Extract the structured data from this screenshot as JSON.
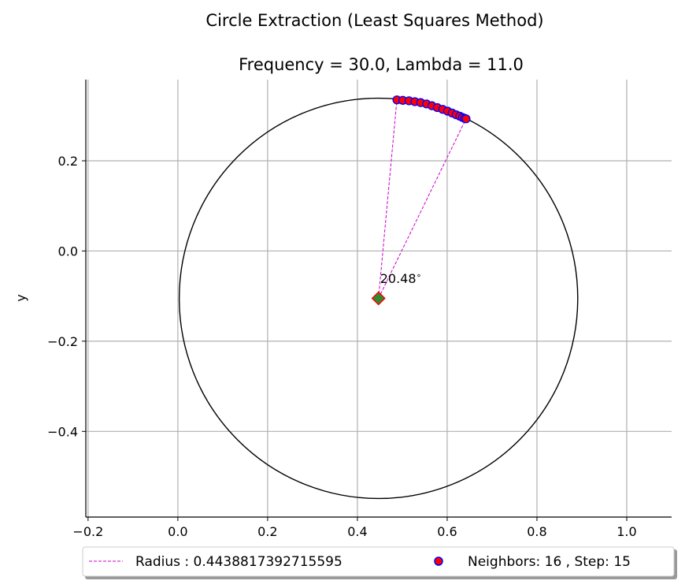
{
  "chart_data": {
    "type": "scatter",
    "suptitle": "Circle Extraction (Least Squares Method)",
    "title": "Frequency = 30.0, Lambda = 11.0",
    "xlabel": "",
    "ylabel": "y",
    "xlim": [
      -0.205,
      1.1
    ],
    "ylim": [
      -0.59,
      0.38
    ],
    "xticks": [
      -0.2,
      0.0,
      0.2,
      0.4,
      0.6,
      0.8,
      1.0
    ],
    "xtick_labels": [
      "−0.2",
      "0.0",
      "0.2",
      "0.4",
      "0.6",
      "0.8",
      "1.0"
    ],
    "yticks": [
      -0.4,
      -0.2,
      0.0,
      0.2
    ],
    "ytick_labels": [
      "−0.4",
      "−0.2",
      "0.0",
      "0.2"
    ],
    "grid": true,
    "circle": {
      "center": [
        0.447,
        -0.105
      ],
      "radius": 0.4438817392715595
    },
    "center_marker": {
      "x": 0.447,
      "y": -0.105
    },
    "points": {
      "x": [
        0.488,
        0.501,
        0.515,
        0.528,
        0.541,
        0.554,
        0.566,
        0.578,
        0.59,
        0.601,
        0.611,
        0.62,
        0.628,
        0.634,
        0.639,
        0.642
      ],
      "y": [
        0.335,
        0.334,
        0.333,
        0.331,
        0.329,
        0.326,
        0.322,
        0.318,
        0.314,
        0.31,
        0.306,
        0.302,
        0.299,
        0.296,
        0.294,
        0.293
      ]
    },
    "radius_lines": [
      {
        "from": [
          0.447,
          -0.105
        ],
        "to": [
          0.488,
          0.335
        ]
      },
      {
        "from": [
          0.447,
          -0.105
        ],
        "to": [
          0.642,
          0.293
        ]
      }
    ],
    "angle_annotation": {
      "text": "20.48",
      "degree_symbol": "∘",
      "x": 0.447,
      "y": -0.06
    },
    "legend": {
      "location": "lower center, outside plot",
      "entries": [
        {
          "label": "Radius : 0.4438817392715595",
          "style": "dashed-line",
          "color": "#cc00cc"
        },
        {
          "label": "Neighbors: 16 , Step: 15",
          "style": "marker",
          "color": "#ff0000",
          "edge": "#0000ff"
        }
      ]
    },
    "colors": {
      "circle": "#000000",
      "points_face": "#ff0000",
      "points_edge": "#0000ff",
      "radius": "#cc00cc",
      "center_face": "#2e8b2e",
      "center_edge": "#ff0000",
      "grid": "#b0b0b0"
    }
  }
}
